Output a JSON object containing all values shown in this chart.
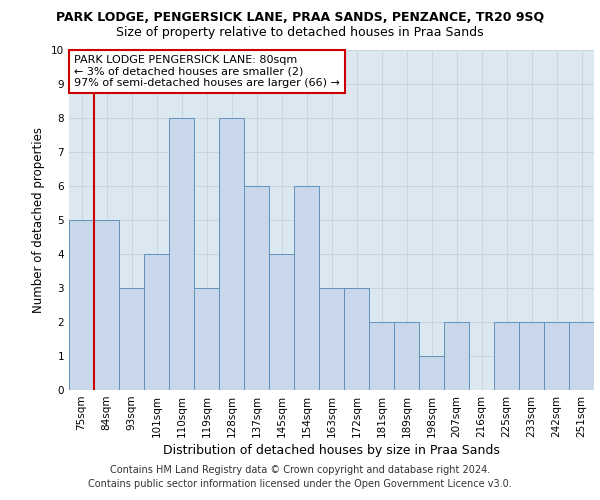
{
  "title": "PARK LODGE, PENGERSICK LANE, PRAA SANDS, PENZANCE, TR20 9SQ",
  "subtitle": "Size of property relative to detached houses in Praa Sands",
  "xlabel": "Distribution of detached houses by size in Praa Sands",
  "ylabel": "Number of detached properties",
  "categories": [
    "75sqm",
    "84sqm",
    "93sqm",
    "101sqm",
    "110sqm",
    "119sqm",
    "128sqm",
    "137sqm",
    "145sqm",
    "154sqm",
    "163sqm",
    "172sqm",
    "181sqm",
    "189sqm",
    "198sqm",
    "207sqm",
    "216sqm",
    "225sqm",
    "233sqm",
    "242sqm",
    "251sqm"
  ],
  "values": [
    5,
    5,
    3,
    4,
    8,
    3,
    8,
    6,
    4,
    6,
    3,
    3,
    2,
    2,
    1,
    2,
    0,
    2,
    2,
    2,
    2
  ],
  "bar_color": "#c8d8ea",
  "bar_edgecolor": "#6090bb",
  "annotation_text": "PARK LODGE PENGERSICK LANE: 80sqm\n← 3% of detached houses are smaller (2)\n97% of semi-detached houses are larger (66) →",
  "annotation_box_color": "#ffffff",
  "annotation_box_edgecolor": "#cc0000",
  "vline_color": "#cc0000",
  "ylim": [
    0,
    10
  ],
  "yticks": [
    0,
    1,
    2,
    3,
    4,
    5,
    6,
    7,
    8,
    9,
    10
  ],
  "grid_color": "#c8d4de",
  "background_color": "#dce8f0",
  "footer_line1": "Contains HM Land Registry data © Crown copyright and database right 2024.",
  "footer_line2": "Contains public sector information licensed under the Open Government Licence v3.0.",
  "title_fontsize": 9,
  "subtitle_fontsize": 9,
  "xlabel_fontsize": 9,
  "ylabel_fontsize": 8.5,
  "tick_fontsize": 7.5,
  "annotation_fontsize": 8,
  "footer_fontsize": 7
}
